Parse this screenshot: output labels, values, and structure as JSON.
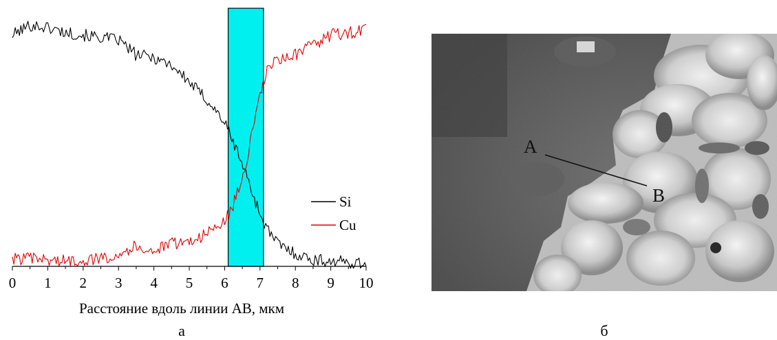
{
  "panels": {
    "left_label": "а",
    "right_label": "б"
  },
  "legend": {
    "si": "Si",
    "cu": "Cu"
  },
  "colors": {
    "si": "#000000",
    "cu": "#e00000",
    "highlight_fill": "#00f0f0"
  },
  "micrograph": {
    "point_a": "A",
    "point_b": "B"
  },
  "chart_data": {
    "type": "line",
    "xlabel": "Расстояние вдоль линии АВ, мкм",
    "ylabel": "",
    "xlim": [
      0,
      10
    ],
    "x_ticks": [
      "0",
      "1",
      "2",
      "3",
      "4",
      "5",
      "6",
      "7",
      "8",
      "9",
      "10"
    ],
    "y_ticks_shown": false,
    "highlight_region": {
      "x_start": 6.1,
      "x_end": 7.1
    },
    "series": [
      {
        "name": "Si",
        "x": [
          0,
          0.5,
          1.0,
          1.5,
          2.0,
          2.5,
          3.0,
          3.5,
          4.0,
          4.5,
          5.0,
          5.5,
          6.0,
          6.2,
          6.4,
          6.6,
          6.8,
          7.0,
          7.2,
          7.5,
          8.0,
          8.5,
          9.0,
          9.5,
          10.0
        ],
        "values": [
          0.92,
          0.96,
          0.95,
          0.93,
          0.92,
          0.91,
          0.9,
          0.84,
          0.83,
          0.8,
          0.73,
          0.66,
          0.57,
          0.5,
          0.44,
          0.36,
          0.28,
          0.2,
          0.14,
          0.08,
          0.04,
          0.015,
          0.01,
          0.005,
          0.0
        ],
        "noise": 0.025
      },
      {
        "name": "Cu",
        "x": [
          0,
          0.5,
          1.0,
          1.5,
          2.0,
          2.5,
          3.0,
          3.5,
          4.0,
          4.5,
          5.0,
          5.5,
          6.0,
          6.2,
          6.4,
          6.6,
          6.8,
          7.0,
          7.2,
          7.5,
          8.0,
          8.5,
          9.0,
          9.5,
          10.0
        ],
        "values": [
          0.02,
          0.02,
          0.015,
          0.01,
          0.015,
          0.02,
          0.04,
          0.07,
          0.05,
          0.08,
          0.09,
          0.12,
          0.17,
          0.22,
          0.3,
          0.4,
          0.54,
          0.67,
          0.78,
          0.82,
          0.84,
          0.88,
          0.92,
          0.93,
          0.94
        ],
        "noise": 0.025
      }
    ]
  }
}
